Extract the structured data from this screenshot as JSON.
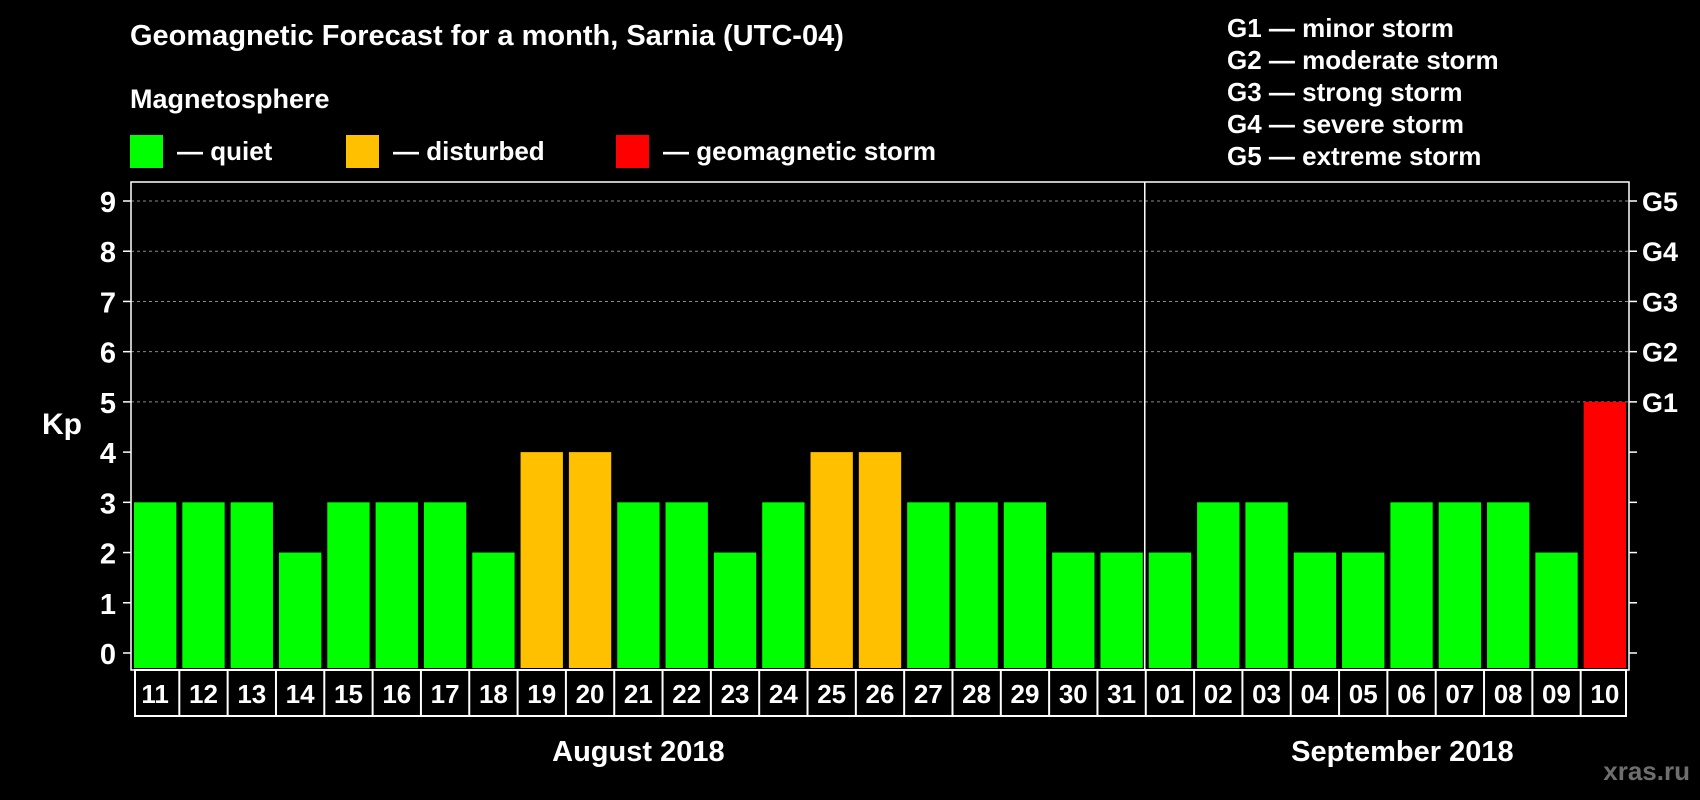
{
  "chart_data": {
    "type": "bar",
    "title": "Geomagnetic Forecast for a month, Sarnia (UTC-04)",
    "subtitle": "Magnetosphere",
    "ylabel": "Kp",
    "ylim": [
      0,
      9
    ],
    "yticks": [
      0,
      1,
      2,
      3,
      4,
      5,
      6,
      7,
      8,
      9
    ],
    "grid": "dashed at 5-9",
    "categories": [
      "11",
      "12",
      "13",
      "14",
      "15",
      "16",
      "17",
      "18",
      "19",
      "20",
      "21",
      "22",
      "23",
      "24",
      "25",
      "26",
      "27",
      "28",
      "29",
      "30",
      "31",
      "01",
      "02",
      "03",
      "04",
      "05",
      "06",
      "07",
      "08",
      "09",
      "10"
    ],
    "values": [
      3,
      3,
      3,
      2,
      3,
      3,
      3,
      2,
      4,
      4,
      3,
      3,
      2,
      3,
      4,
      4,
      3,
      3,
      3,
      2,
      2,
      2,
      3,
      3,
      2,
      2,
      3,
      3,
      3,
      2,
      5
    ],
    "status": [
      "quiet",
      "quiet",
      "quiet",
      "quiet",
      "quiet",
      "quiet",
      "quiet",
      "quiet",
      "disturbed",
      "disturbed",
      "quiet",
      "quiet",
      "quiet",
      "quiet",
      "disturbed",
      "disturbed",
      "quiet",
      "quiet",
      "quiet",
      "quiet",
      "quiet",
      "quiet",
      "quiet",
      "quiet",
      "quiet",
      "quiet",
      "quiet",
      "quiet",
      "quiet",
      "quiet",
      "storm"
    ],
    "months": [
      {
        "label": "August 2018",
        "start_index": 0,
        "count": 21
      },
      {
        "label": "September 2018",
        "start_index": 21,
        "count": 10
      }
    ],
    "legend": [
      {
        "key": "quiet",
        "label": "— quiet",
        "color": "#00ff00"
      },
      {
        "key": "disturbed",
        "label": "— disturbed",
        "color": "#ffc000"
      },
      {
        "key": "storm",
        "label": "— geomagnetic storm",
        "color": "#ff0000"
      }
    ],
    "g_levels": [
      {
        "kp": 5,
        "label": "G1"
      },
      {
        "kp": 6,
        "label": "G2"
      },
      {
        "kp": 7,
        "label": "G3"
      },
      {
        "kp": 8,
        "label": "G4"
      },
      {
        "kp": 9,
        "label": "G5"
      }
    ],
    "g_scale": [
      "G1 — minor storm",
      "G2 — moderate storm",
      "G3 — strong storm",
      "G4 — severe storm",
      "G5 — extreme storm"
    ]
  },
  "watermark": "xras.ru"
}
